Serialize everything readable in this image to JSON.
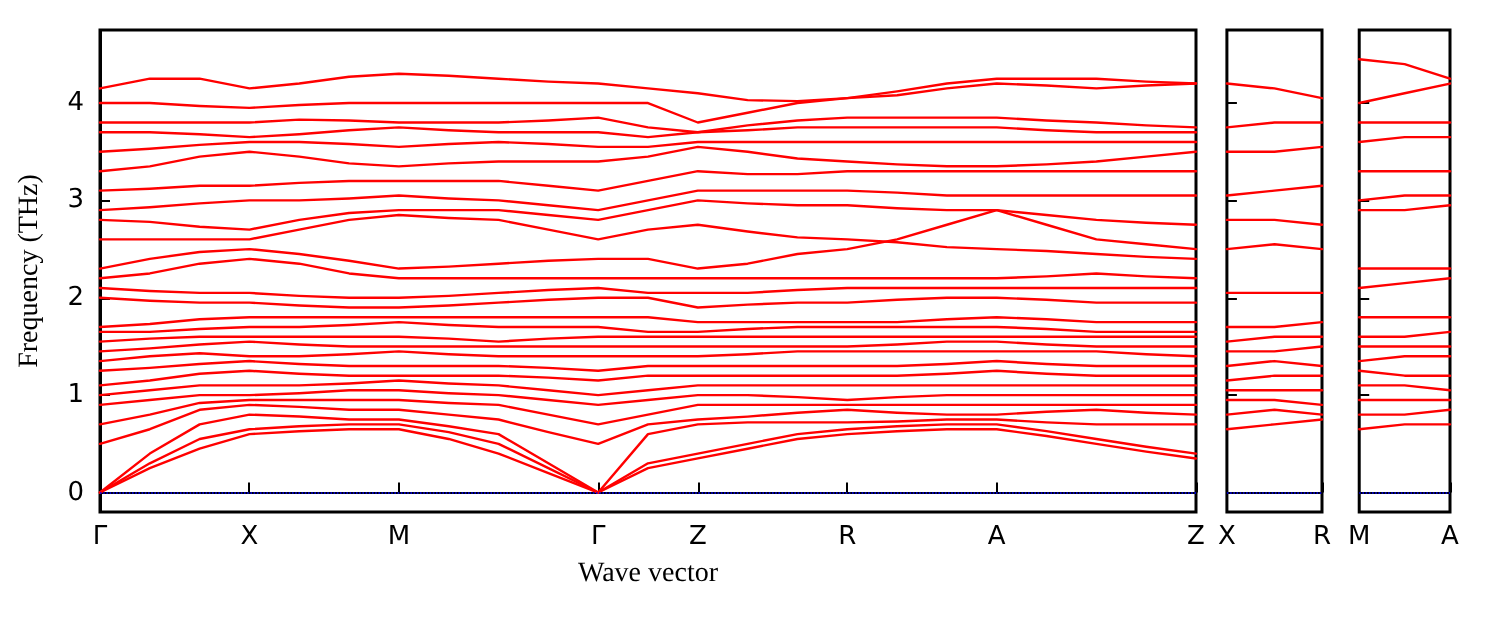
{
  "chart_data": [
    {
      "type": "line",
      "ylabel": "Frequency (THz)",
      "xlabel": "Wave vector",
      "color": "#ff0000",
      "marker": "none",
      "line_style": "solid",
      "grid": false,
      "categories": [
        "Γ",
        null,
        null,
        "X",
        null,
        null,
        "M",
        null,
        null,
        null,
        "Γ",
        null,
        "Z",
        null,
        null,
        "R",
        null,
        null,
        "A",
        null,
        null,
        null,
        "Z"
      ],
      "ylim": [
        -0.2,
        4.75
      ],
      "yticks": [
        0,
        1,
        2,
        3,
        4
      ],
      "ref_lines": [
        {
          "axis": "y",
          "value": 0,
          "color": "#0000ff",
          "line_style": "dotted"
        }
      ],
      "series": [
        {
          "values": [
            0,
            0.25,
            0.45,
            0.6,
            0.63,
            0.65,
            0.65,
            0.55,
            0.4,
            0.2,
            0,
            0.25,
            0.35,
            0.45,
            0.55,
            0.6,
            0.63,
            0.65,
            0.65,
            0.58,
            0.5,
            0.42,
            0.35
          ]
        },
        {
          "values": [
            0,
            0.3,
            0.55,
            0.65,
            0.68,
            0.7,
            0.7,
            0.62,
            0.5,
            0.25,
            0,
            0.3,
            0.4,
            0.5,
            0.6,
            0.65,
            0.68,
            0.7,
            0.7,
            0.63,
            0.55,
            0.47,
            0.4
          ]
        },
        {
          "values": [
            0,
            0.4,
            0.7,
            0.8,
            0.78,
            0.75,
            0.75,
            0.68,
            0.6,
            0.3,
            0,
            0.6,
            0.7,
            0.72,
            0.72,
            0.72,
            0.73,
            0.75,
            0.75,
            0.72,
            0.7,
            0.7,
            0.7
          ]
        },
        {
          "values": [
            0.5,
            0.65,
            0.85,
            0.9,
            0.88,
            0.85,
            0.85,
            0.8,
            0.75,
            0.62,
            0.5,
            0.7,
            0.75,
            0.78,
            0.82,
            0.85,
            0.82,
            0.8,
            0.8,
            0.83,
            0.85,
            0.82,
            0.8
          ]
        },
        {
          "values": [
            0.7,
            0.8,
            0.92,
            0.95,
            0.95,
            0.95,
            0.95,
            0.92,
            0.9,
            0.8,
            0.7,
            0.8,
            0.9,
            0.9,
            0.9,
            0.9,
            0.9,
            0.9,
            0.9,
            0.9,
            0.9,
            0.9,
            0.9
          ]
        },
        {
          "values": [
            0.9,
            0.95,
            1.0,
            1.0,
            1.02,
            1.05,
            1.05,
            1.02,
            1.0,
            0.95,
            0.9,
            0.95,
            1.0,
            1.0,
            0.98,
            0.95,
            0.98,
            1.0,
            1.0,
            1.0,
            1.0,
            1.0,
            1.0
          ]
        },
        {
          "values": [
            1.0,
            1.05,
            1.1,
            1.1,
            1.1,
            1.12,
            1.15,
            1.12,
            1.1,
            1.05,
            1.0,
            1.05,
            1.1,
            1.1,
            1.1,
            1.1,
            1.1,
            1.1,
            1.1,
            1.1,
            1.1,
            1.1,
            1.1
          ]
        },
        {
          "values": [
            1.1,
            1.15,
            1.22,
            1.25,
            1.22,
            1.2,
            1.2,
            1.2,
            1.2,
            1.18,
            1.15,
            1.2,
            1.2,
            1.2,
            1.2,
            1.2,
            1.2,
            1.22,
            1.25,
            1.22,
            1.2,
            1.2,
            1.2
          ]
        },
        {
          "values": [
            1.25,
            1.28,
            1.32,
            1.35,
            1.32,
            1.3,
            1.3,
            1.3,
            1.3,
            1.28,
            1.25,
            1.3,
            1.3,
            1.3,
            1.3,
            1.3,
            1.3,
            1.32,
            1.35,
            1.32,
            1.3,
            1.3,
            1.3
          ]
        },
        {
          "values": [
            1.35,
            1.4,
            1.43,
            1.4,
            1.4,
            1.42,
            1.45,
            1.42,
            1.4,
            1.4,
            1.4,
            1.4,
            1.4,
            1.42,
            1.45,
            1.45,
            1.45,
            1.45,
            1.45,
            1.45,
            1.45,
            1.42,
            1.4
          ]
        },
        {
          "values": [
            1.45,
            1.48,
            1.52,
            1.55,
            1.52,
            1.5,
            1.5,
            1.5,
            1.5,
            1.5,
            1.5,
            1.5,
            1.5,
            1.5,
            1.5,
            1.5,
            1.52,
            1.55,
            1.55,
            1.52,
            1.5,
            1.5,
            1.5
          ]
        },
        {
          "values": [
            1.55,
            1.58,
            1.6,
            1.6,
            1.6,
            1.6,
            1.6,
            1.58,
            1.55,
            1.58,
            1.6,
            1.6,
            1.6,
            1.6,
            1.6,
            1.6,
            1.6,
            1.6,
            1.6,
            1.6,
            1.6,
            1.6,
            1.6
          ]
        },
        {
          "values": [
            1.65,
            1.65,
            1.68,
            1.7,
            1.7,
            1.72,
            1.75,
            1.72,
            1.7,
            1.7,
            1.7,
            1.65,
            1.65,
            1.68,
            1.7,
            1.7,
            1.7,
            1.7,
            1.7,
            1.68,
            1.65,
            1.65,
            1.65
          ]
        },
        {
          "values": [
            1.7,
            1.73,
            1.78,
            1.8,
            1.8,
            1.8,
            1.8,
            1.8,
            1.8,
            1.8,
            1.8,
            1.8,
            1.75,
            1.75,
            1.75,
            1.75,
            1.75,
            1.78,
            1.8,
            1.78,
            1.75,
            1.75,
            1.75
          ]
        },
        {
          "values": [
            2.0,
            1.97,
            1.95,
            1.95,
            1.92,
            1.9,
            1.9,
            1.92,
            1.95,
            1.98,
            2.0,
            2.0,
            1.9,
            1.93,
            1.95,
            1.95,
            1.98,
            2.0,
            2.0,
            1.98,
            1.95,
            1.95,
            1.95
          ]
        },
        {
          "values": [
            2.1,
            2.07,
            2.05,
            2.05,
            2.02,
            2.0,
            2.0,
            2.02,
            2.05,
            2.08,
            2.1,
            2.05,
            2.05,
            2.05,
            2.08,
            2.1,
            2.1,
            2.1,
            2.1,
            2.1,
            2.1,
            2.1,
            2.1
          ]
        },
        {
          "values": [
            2.2,
            2.25,
            2.35,
            2.4,
            2.35,
            2.25,
            2.2,
            2.2,
            2.2,
            2.2,
            2.2,
            2.2,
            2.2,
            2.2,
            2.2,
            2.2,
            2.2,
            2.2,
            2.2,
            2.22,
            2.25,
            2.22,
            2.2
          ]
        },
        {
          "values": [
            2.3,
            2.4,
            2.47,
            2.5,
            2.45,
            2.38,
            2.3,
            2.32,
            2.35,
            2.38,
            2.4,
            2.4,
            2.3,
            2.35,
            2.45,
            2.5,
            2.6,
            2.75,
            2.9,
            2.75,
            2.6,
            2.55,
            2.5
          ]
        },
        {
          "values": [
            2.6,
            2.6,
            2.6,
            2.6,
            2.7,
            2.8,
            2.85,
            2.82,
            2.8,
            2.7,
            2.6,
            2.7,
            2.75,
            2.68,
            2.62,
            2.6,
            2.57,
            2.52,
            2.5,
            2.48,
            2.45,
            2.42,
            2.4
          ]
        },
        {
          "values": [
            2.8,
            2.78,
            2.73,
            2.7,
            2.8,
            2.87,
            2.9,
            2.9,
            2.9,
            2.85,
            2.8,
            2.9,
            3.0,
            2.97,
            2.95,
            2.95,
            2.92,
            2.9,
            2.9,
            2.85,
            2.8,
            2.77,
            2.75
          ]
        },
        {
          "values": [
            2.9,
            2.93,
            2.97,
            3.0,
            3.0,
            3.02,
            3.05,
            3.02,
            3.0,
            2.95,
            2.9,
            3.0,
            3.1,
            3.1,
            3.1,
            3.1,
            3.08,
            3.05,
            3.05,
            3.05,
            3.05,
            3.05,
            3.05
          ]
        },
        {
          "values": [
            3.1,
            3.12,
            3.15,
            3.15,
            3.18,
            3.2,
            3.2,
            3.2,
            3.2,
            3.15,
            3.1,
            3.2,
            3.3,
            3.27,
            3.27,
            3.3,
            3.3,
            3.3,
            3.3,
            3.3,
            3.3,
            3.3,
            3.3
          ]
        },
        {
          "values": [
            3.3,
            3.35,
            3.45,
            3.5,
            3.45,
            3.38,
            3.35,
            3.38,
            3.4,
            3.4,
            3.4,
            3.45,
            3.55,
            3.5,
            3.43,
            3.4,
            3.37,
            3.35,
            3.35,
            3.37,
            3.4,
            3.45,
            3.5
          ]
        },
        {
          "values": [
            3.5,
            3.53,
            3.57,
            3.6,
            3.6,
            3.58,
            3.55,
            3.58,
            3.6,
            3.58,
            3.55,
            3.55,
            3.6,
            3.6,
            3.6,
            3.6,
            3.6,
            3.6,
            3.6,
            3.6,
            3.6,
            3.6,
            3.6
          ]
        },
        {
          "values": [
            3.7,
            3.7,
            3.68,
            3.65,
            3.68,
            3.72,
            3.75,
            3.72,
            3.7,
            3.7,
            3.7,
            3.65,
            3.7,
            3.72,
            3.75,
            3.75,
            3.75,
            3.75,
            3.75,
            3.72,
            3.7,
            3.7,
            3.7
          ]
        },
        {
          "values": [
            3.8,
            3.8,
            3.8,
            3.8,
            3.83,
            3.82,
            3.8,
            3.8,
            3.8,
            3.82,
            3.85,
            3.75,
            3.7,
            3.77,
            3.82,
            3.85,
            3.85,
            3.85,
            3.85,
            3.82,
            3.8,
            3.77,
            3.75
          ]
        },
        {
          "values": [
            4.0,
            4.0,
            3.97,
            3.95,
            3.98,
            4.0,
            4.0,
            4.0,
            4.0,
            4.0,
            4.0,
            4.0,
            3.8,
            3.9,
            4.0,
            4.05,
            4.12,
            4.2,
            4.25,
            4.25,
            4.25,
            4.22,
            4.2
          ]
        },
        {
          "values": [
            4.15,
            4.25,
            4.25,
            4.15,
            4.2,
            4.27,
            4.3,
            4.28,
            4.25,
            4.22,
            4.2,
            4.15,
            4.1,
            4.03,
            4.02,
            4.05,
            4.08,
            4.15,
            4.2,
            4.18,
            4.15,
            4.18,
            4.2
          ]
        }
      ]
    },
    {
      "type": "line",
      "color": "#ff0000",
      "marker": "none",
      "line_style": "solid",
      "grid": false,
      "tick_labels": "x",
      "categories": [
        "X",
        null,
        "R"
      ],
      "ylim": [
        -0.2,
        4.75
      ],
      "yticks": [
        0,
        1,
        2,
        3,
        4
      ],
      "ref_lines": [
        {
          "axis": "y",
          "value": 0,
          "color": "#0000ff",
          "line_style": "dotted"
        }
      ],
      "series": [
        {
          "values": [
            0.65,
            0.7,
            0.75
          ]
        },
        {
          "values": [
            0.8,
            0.85,
            0.8
          ]
        },
        {
          "values": [
            0.95,
            0.95,
            0.9
          ]
        },
        {
          "values": [
            1.05,
            1.05,
            1.05
          ]
        },
        {
          "values": [
            1.15,
            1.2,
            1.2
          ]
        },
        {
          "values": [
            1.3,
            1.35,
            1.3
          ]
        },
        {
          "values": [
            1.45,
            1.45,
            1.5
          ]
        },
        {
          "values": [
            1.55,
            1.6,
            1.6
          ]
        },
        {
          "values": [
            1.7,
            1.7,
            1.75
          ]
        },
        {
          "values": [
            2.05,
            2.05,
            2.05
          ]
        },
        {
          "values": [
            2.5,
            2.55,
            2.5
          ]
        },
        {
          "values": [
            2.8,
            2.8,
            2.75
          ]
        },
        {
          "values": [
            3.05,
            3.1,
            3.15
          ]
        },
        {
          "values": [
            3.5,
            3.5,
            3.55
          ]
        },
        {
          "values": [
            3.75,
            3.8,
            3.8
          ]
        },
        {
          "values": [
            4.2,
            4.15,
            4.05
          ]
        }
      ]
    },
    {
      "type": "line",
      "color": "#ff0000",
      "marker": "none",
      "line_style": "solid",
      "grid": false,
      "tick_labels": "x",
      "categories": [
        "M",
        null,
        "A"
      ],
      "ylim": [
        -0.2,
        4.75
      ],
      "yticks": [
        0,
        1,
        2,
        3,
        4
      ],
      "ref_lines": [
        {
          "axis": "y",
          "value": 0,
          "color": "#0000ff",
          "line_style": "dotted"
        }
      ],
      "series": [
        {
          "values": [
            0.65,
            0.7,
            0.7
          ]
        },
        {
          "values": [
            0.8,
            0.8,
            0.85
          ]
        },
        {
          "values": [
            0.95,
            0.95,
            0.95
          ]
        },
        {
          "values": [
            1.1,
            1.1,
            1.05
          ]
        },
        {
          "values": [
            1.25,
            1.2,
            1.2
          ]
        },
        {
          "values": [
            1.35,
            1.4,
            1.4
          ]
        },
        {
          "values": [
            1.5,
            1.5,
            1.5
          ]
        },
        {
          "values": [
            1.6,
            1.6,
            1.65
          ]
        },
        {
          "values": [
            1.8,
            1.8,
            1.8
          ]
        },
        {
          "values": [
            2.1,
            2.15,
            2.2
          ]
        },
        {
          "values": [
            2.3,
            2.3,
            2.3
          ]
        },
        {
          "values": [
            2.9,
            2.9,
            2.95
          ]
        },
        {
          "values": [
            3.0,
            3.05,
            3.05
          ]
        },
        {
          "values": [
            3.3,
            3.3,
            3.3
          ]
        },
        {
          "values": [
            3.6,
            3.65,
            3.65
          ]
        },
        {
          "values": [
            3.8,
            3.8,
            3.8
          ]
        },
        {
          "values": [
            4.0,
            4.1,
            4.2
          ]
        },
        {
          "values": [
            4.45,
            4.4,
            4.25
          ]
        }
      ]
    }
  ]
}
